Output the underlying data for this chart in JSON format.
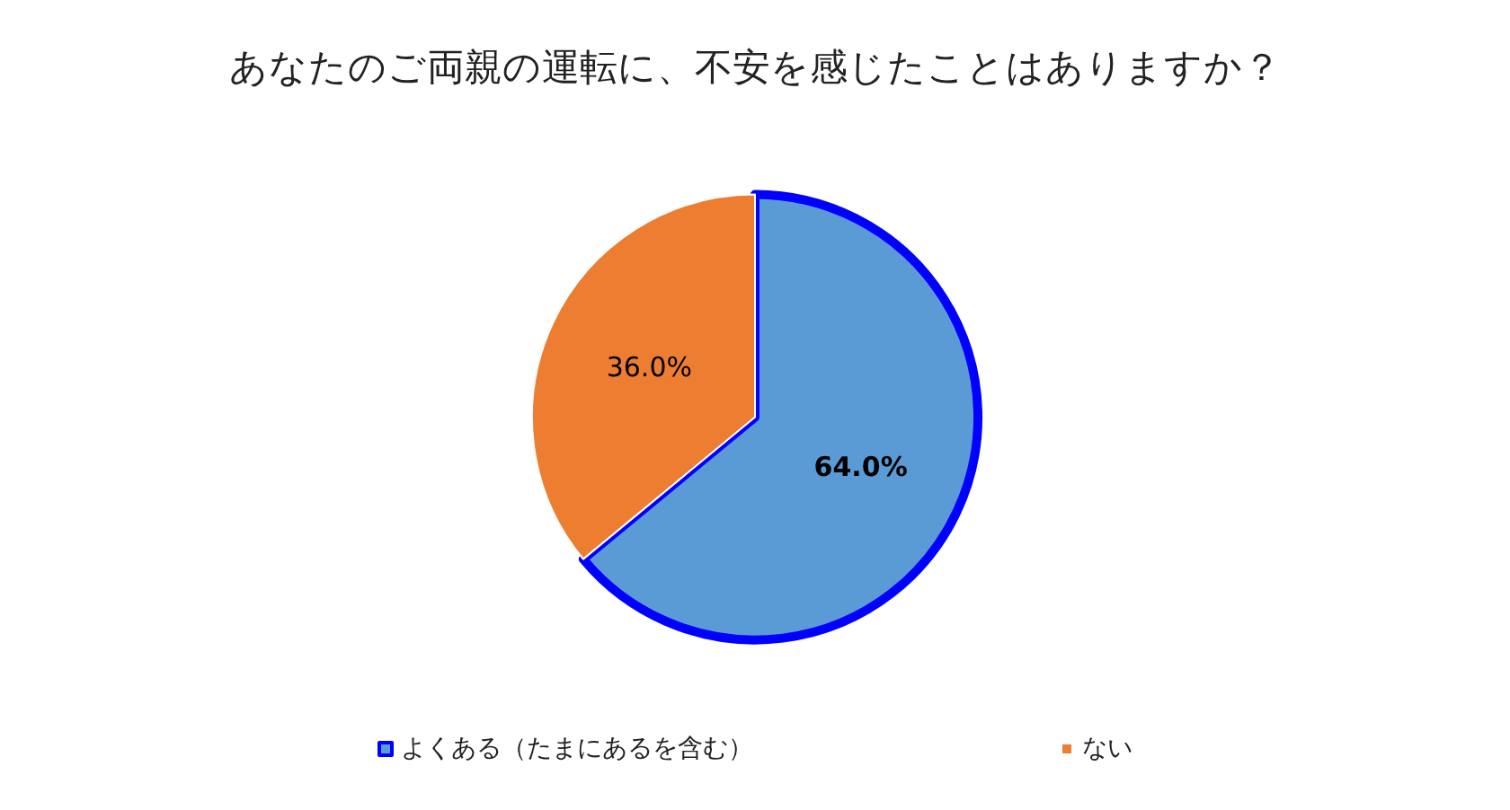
{
  "chart_data": {
    "type": "pie",
    "title": "あなたのご両親の運転に、不安を感じたことはありますか？",
    "categories": [
      "よくある（たまにあるを含む）",
      "ない"
    ],
    "values": [
      64,
      36
    ],
    "colors": [
      "#5b9bd5",
      "#ed7d31"
    ],
    "value_labels": [
      "64.0%",
      "36.0%"
    ],
    "legend": "bottom"
  }
}
